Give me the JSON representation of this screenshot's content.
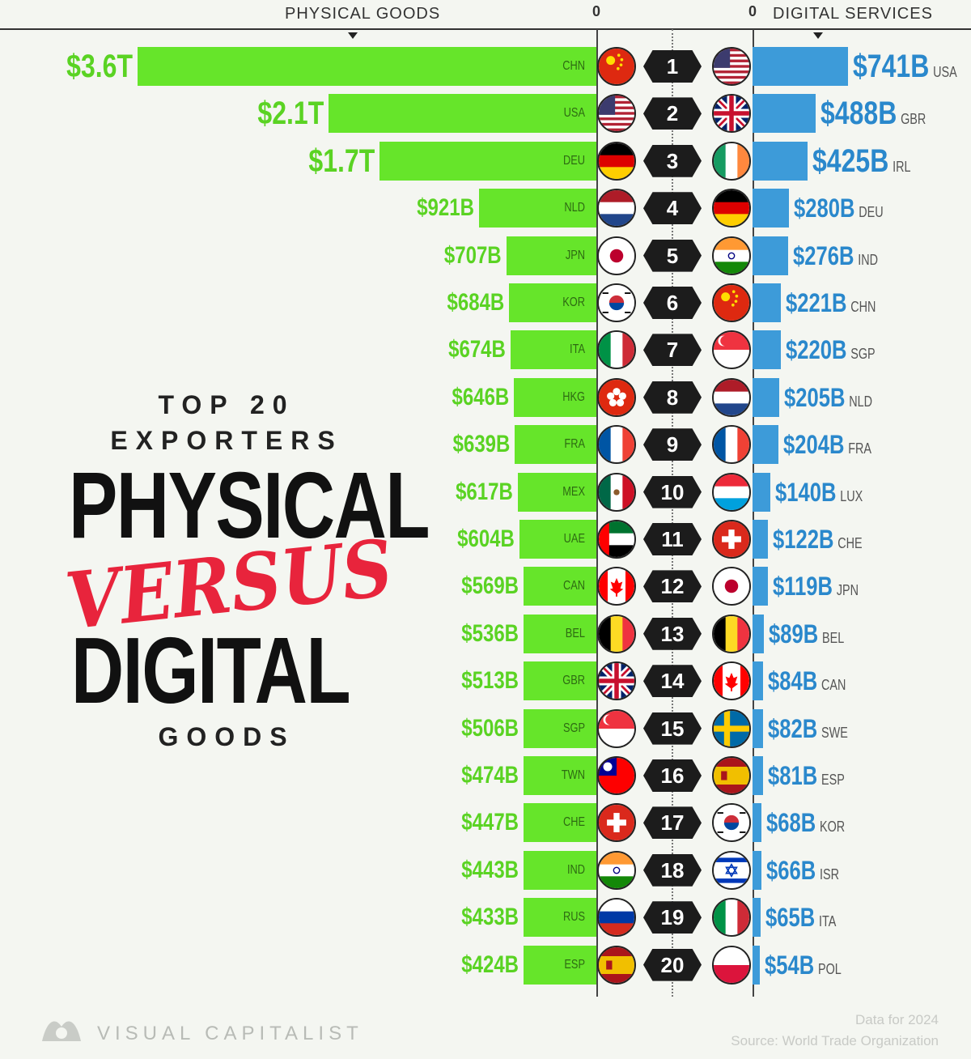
{
  "header": {
    "physical_label": "PHYSICAL GOODS",
    "digital_label": "DIGITAL SERVICES",
    "zero_left": "0",
    "zero_right": "0"
  },
  "title": {
    "line1": "TOP 20",
    "line2": "EXPORTERS",
    "physical": "PHYSICAL",
    "versus": "VERSUS",
    "digital": "DIGITAL",
    "goods": "GOODS"
  },
  "footer": {
    "brand": "VISUAL CAPITALIST",
    "data_note": "Data for 2024",
    "source": "Source: World Trade Organization"
  },
  "colors": {
    "physical": "#66e52a",
    "digital": "#3d9bd9",
    "versus": "#e8243c"
  },
  "chart_data": {
    "type": "bar",
    "ranks": [
      "1",
      "2",
      "3",
      "4",
      "5",
      "6",
      "7",
      "8",
      "9",
      "10",
      "11",
      "12",
      "13",
      "14",
      "15",
      "16",
      "17",
      "18",
      "19",
      "20"
    ],
    "series": [
      {
        "name": "PHYSICAL GOODS",
        "countries": [
          "CHN",
          "USA",
          "DEU",
          "NLD",
          "JPN",
          "KOR",
          "ITA",
          "HKG",
          "FRA",
          "MEX",
          "UAE",
          "CAN",
          "BEL",
          "GBR",
          "SGP",
          "TWN",
          "CHE",
          "IND",
          "RUS",
          "ESP"
        ],
        "values": [
          3600,
          2100,
          1700,
          921,
          707,
          684,
          674,
          646,
          639,
          617,
          604,
          569,
          536,
          513,
          506,
          474,
          447,
          443,
          433,
          424
        ],
        "labels": [
          "$3.6T",
          "$2.1T",
          "$1.7T",
          "$921B",
          "$707B",
          "$684B",
          "$674B",
          "$646B",
          "$639B",
          "$617B",
          "$604B",
          "$569B",
          "$536B",
          "$513B",
          "$506B",
          "$474B",
          "$447B",
          "$443B",
          "$433B",
          "$424B"
        ]
      },
      {
        "name": "DIGITAL SERVICES",
        "countries": [
          "USA",
          "GBR",
          "IRL",
          "DEU",
          "IND",
          "CHN",
          "SGP",
          "NLD",
          "FRA",
          "LUX",
          "CHE",
          "JPN",
          "BEL",
          "CAN",
          "SWE",
          "ESP",
          "KOR",
          "ISR",
          "ITA",
          "POL"
        ],
        "values": [
          741,
          488,
          425,
          280,
          276,
          221,
          220,
          205,
          204,
          140,
          122,
          119,
          89,
          84,
          82,
          81,
          68,
          66,
          65,
          54
        ],
        "labels": [
          "$741B",
          "$488B",
          "$425B",
          "$280B",
          "$276B",
          "$221B",
          "$220B",
          "$205B",
          "$204B",
          "$140B",
          "$122B",
          "$119B",
          "$89B",
          "$84B",
          "$82B",
          "$81B",
          "$68B",
          "$66B",
          "$65B",
          "$54B"
        ]
      }
    ],
    "units": "USD billions"
  }
}
